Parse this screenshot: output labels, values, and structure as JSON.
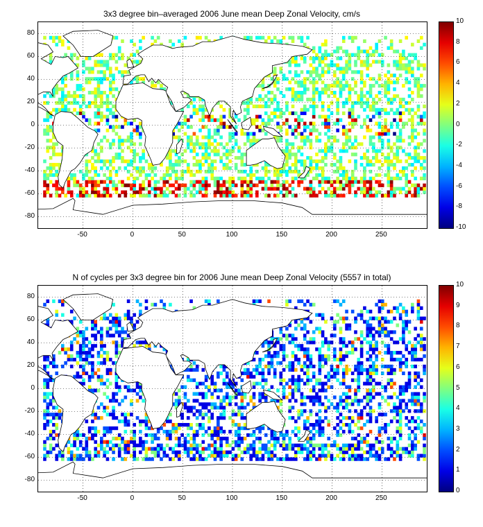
{
  "chart_data": [
    {
      "type": "heatmap",
      "title": "3x3 degree bin–averaged 2006 June mean Deep Zonal Velocity, cm/s",
      "xlabel": "",
      "ylabel": "",
      "xlim": [
        -95,
        295
      ],
      "ylim": [
        -90,
        90
      ],
      "x_ticks": [
        -50,
        0,
        50,
        100,
        150,
        200,
        250
      ],
      "y_ticks": [
        80,
        60,
        40,
        20,
        0,
        -20,
        -40,
        -60,
        -80
      ],
      "grid": true,
      "bin_size_deg": 3,
      "colorbar": {
        "min": -10,
        "max": 10,
        "ticks": [
          10,
          8,
          6,
          4,
          2,
          0,
          -2,
          -4,
          -6,
          -8,
          -10
        ],
        "colormap": "jet"
      },
      "description_of_pattern": "Sparse 3x3 degree colored bins over oceans; mostly values near 0 (green/cyan), strong positive (red) eastward band along Southern Ocean near 50-60S."
    },
    {
      "type": "heatmap",
      "title": "N of cycles per 3x3 degree bin for 2006 June mean Deep Zonal Velocity (5557 in total)",
      "xlabel": "",
      "ylabel": "",
      "xlim": [
        -95,
        295
      ],
      "ylim": [
        -90,
        90
      ],
      "x_ticks": [
        -50,
        0,
        50,
        100,
        150,
        200,
        250
      ],
      "y_ticks": [
        80,
        60,
        40,
        20,
        0,
        -20,
        -40,
        -60,
        -80
      ],
      "grid": true,
      "bin_size_deg": 3,
      "total_cycles": 5557,
      "colorbar": {
        "min": 0,
        "max": 10,
        "ticks": [
          10,
          9,
          8,
          7,
          6,
          5,
          4,
          3,
          2,
          1,
          0
        ],
        "colormap": "jet"
      },
      "description_of_pattern": "Sparse 3x3 degree colored bins over oceans, mostly 1-3 cycles (blue/cyan)."
    }
  ]
}
